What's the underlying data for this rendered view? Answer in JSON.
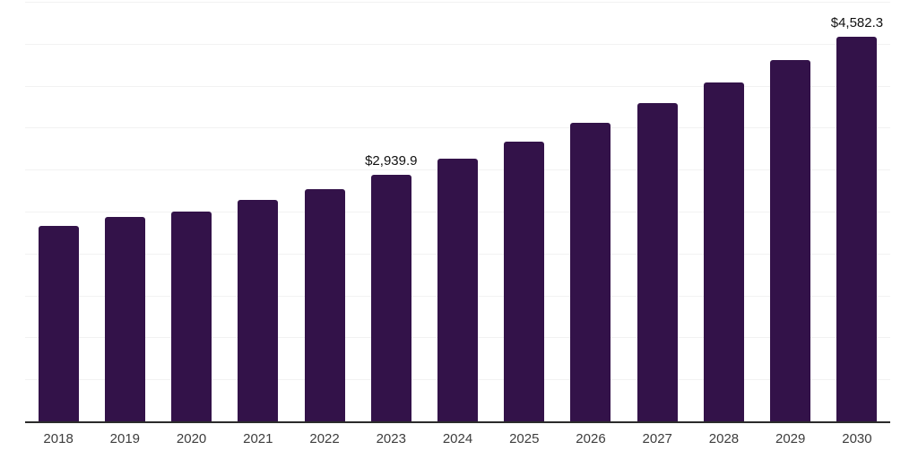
{
  "chart_data": {
    "type": "bar",
    "title": "",
    "xlabel": "",
    "ylabel": "",
    "categories": [
      "2018",
      "2019",
      "2020",
      "2021",
      "2022",
      "2023",
      "2024",
      "2025",
      "2026",
      "2027",
      "2028",
      "2029",
      "2030"
    ],
    "values": [
      2330,
      2441,
      2502,
      2637,
      2771,
      2939.9,
      3133,
      3338,
      3556,
      3789,
      4038,
      4302,
      4582.3
    ],
    "value_labels": {
      "2023": "$2,939.9",
      "2030": "$4,582.3"
    },
    "ylim": [
      0,
      5000
    ],
    "grid_step": 500,
    "grid": true,
    "legend": false,
    "colors": {
      "bar": "#331249",
      "grid": "#f2f2f2",
      "axis": "#2b2b2b",
      "value_label": "#111111",
      "tick_label": "#3d3d3d",
      "background": "#ffffff"
    }
  }
}
